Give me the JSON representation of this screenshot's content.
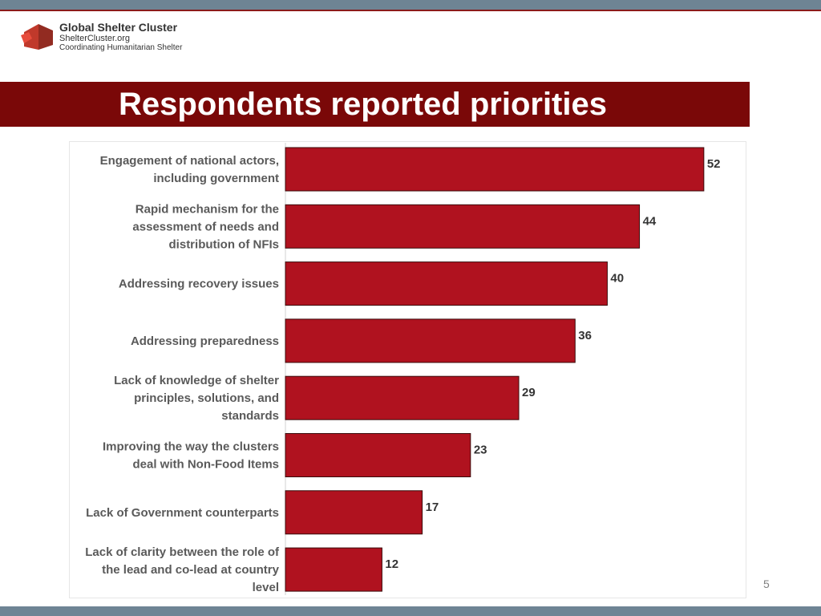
{
  "logo": {
    "title": "Global Shelter Cluster",
    "url": "ShelterCluster.org",
    "tagline": "Coordinating Humanitarian Shelter",
    "icon": "hands-house-icon"
  },
  "title": "Respondents reported priorities",
  "page_number": "5",
  "colors": {
    "bar": "#b0121f",
    "bar_border": "#3a0a0a",
    "banner": "#7a0808",
    "frame": "#6e8494"
  },
  "chart_data": {
    "type": "bar",
    "orientation": "horizontal",
    "categories": [
      [
        "Engagement  of national actors,",
        "including government"
      ],
      [
        "Rapid mechanism for the",
        "assessment of needs and",
        "distribution of NFIs"
      ],
      [
        "Addressing recovery issues"
      ],
      [
        "Addressing preparedness"
      ],
      [
        "Lack of knowledge of shelter",
        "principles, solutions, and",
        "standards"
      ],
      [
        "Improving the way the clusters",
        "deal with Non-Food Items"
      ],
      [
        "Lack of Government counterparts"
      ],
      [
        "Lack of clarity between the role of",
        "the lead and co-lead at country",
        "level"
      ]
    ],
    "values": [
      52,
      44,
      40,
      36,
      29,
      23,
      17,
      12
    ],
    "xlim": [
      0,
      56
    ],
    "grid": false,
    "legend": "none"
  }
}
